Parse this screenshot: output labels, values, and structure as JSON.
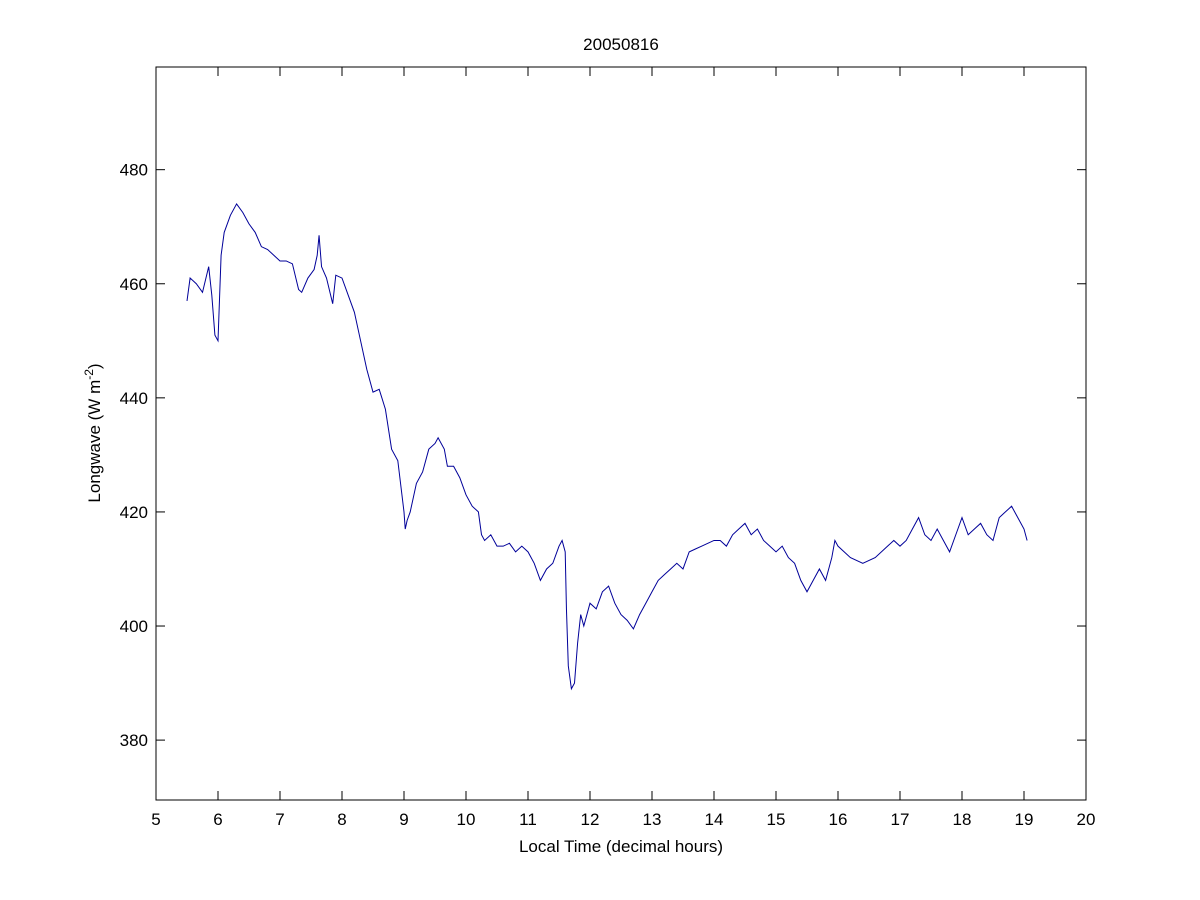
{
  "chart_data": {
    "type": "line",
    "title": "20050816",
    "x_label": "Local Time (decimal hours)",
    "y_label": {
      "text": "Longwave (W m",
      "superscript": "-2",
      "suffix": ")"
    },
    "xlim": [
      5,
      20
    ],
    "ylim": [
      369.5,
      498
    ],
    "xticks": [
      5,
      6,
      7,
      8,
      9,
      10,
      11,
      12,
      13,
      14,
      15,
      16,
      17,
      18,
      19,
      20
    ],
    "yticks": [
      380,
      400,
      420,
      440,
      460,
      480
    ],
    "grid": false,
    "series": [
      {
        "name": "Longwave",
        "color": "#000099",
        "x": [
          5.5,
          5.55,
          5.65,
          5.75,
          5.85,
          5.9,
          5.95,
          6.0,
          6.05,
          6.1,
          6.2,
          6.3,
          6.4,
          6.5,
          6.6,
          6.7,
          6.8,
          6.9,
          7.0,
          7.1,
          7.2,
          7.3,
          7.35,
          7.45,
          7.55,
          7.6,
          7.63,
          7.67,
          7.75,
          7.85,
          7.9,
          8.0,
          8.1,
          8.2,
          8.3,
          8.4,
          8.5,
          8.6,
          8.7,
          8.8,
          8.9,
          9.0,
          9.02,
          9.05,
          9.1,
          9.2,
          9.3,
          9.4,
          9.5,
          9.55,
          9.65,
          9.7,
          9.8,
          9.9,
          10.0,
          10.1,
          10.2,
          10.25,
          10.3,
          10.4,
          10.5,
          10.6,
          10.7,
          10.8,
          10.9,
          11.0,
          11.1,
          11.2,
          11.3,
          11.4,
          11.5,
          11.55,
          11.6,
          11.62,
          11.65,
          11.7,
          11.75,
          11.8,
          11.85,
          11.9,
          12.0,
          12.1,
          12.2,
          12.3,
          12.4,
          12.5,
          12.6,
          12.7,
          12.8,
          12.9,
          13.0,
          13.1,
          13.2,
          13.3,
          13.4,
          13.5,
          13.6,
          13.7,
          13.8,
          13.9,
          14.0,
          14.1,
          14.2,
          14.3,
          14.4,
          14.5,
          14.6,
          14.7,
          14.8,
          14.9,
          15.0,
          15.1,
          15.2,
          15.3,
          15.4,
          15.5,
          15.6,
          15.7,
          15.8,
          15.9,
          15.95,
          16.0,
          16.1,
          16.2,
          16.4,
          16.6,
          16.8,
          16.9,
          17.0,
          17.1,
          17.2,
          17.3,
          17.4,
          17.5,
          17.6,
          17.7,
          17.8,
          17.9,
          18.0,
          18.1,
          18.2,
          18.3,
          18.4,
          18.5,
          18.6,
          18.7,
          18.8,
          18.9,
          19.0,
          19.05
        ],
        "values": [
          457,
          461,
          460,
          458.5,
          463,
          458,
          451,
          450,
          465,
          469,
          472,
          474,
          472.5,
          470.5,
          469,
          466.5,
          466,
          465,
          464,
          464,
          463.5,
          459,
          458.5,
          461,
          462.5,
          465,
          468.5,
          463,
          461,
          456.5,
          461.5,
          461,
          458,
          455,
          450,
          445,
          441,
          441.5,
          438,
          431,
          429,
          420,
          417,
          418.5,
          420,
          425,
          427,
          431,
          432,
          433,
          431,
          428,
          428,
          426,
          423,
          421,
          420,
          416,
          415,
          416,
          414,
          414,
          414.5,
          413,
          414,
          413,
          411,
          408,
          410,
          411,
          414,
          415,
          413,
          403,
          393,
          389,
          390,
          397,
          402,
          400,
          404,
          403,
          406,
          407,
          404,
          402,
          401,
          399.5,
          402,
          404,
          406,
          408,
          409,
          410,
          411,
          410,
          413,
          413.5,
          414,
          414.5,
          415,
          415,
          414,
          416,
          417,
          418,
          416,
          417,
          415,
          414,
          413,
          414,
          412,
          411,
          408,
          406,
          408,
          410,
          408,
          412,
          415,
          414,
          413,
          412,
          411,
          412,
          414,
          415,
          414,
          415,
          417,
          419,
          416,
          415,
          417,
          415,
          413,
          416,
          419,
          416,
          417,
          418,
          416,
          415,
          419,
          420,
          421,
          419,
          417,
          415
        ]
      }
    ]
  }
}
